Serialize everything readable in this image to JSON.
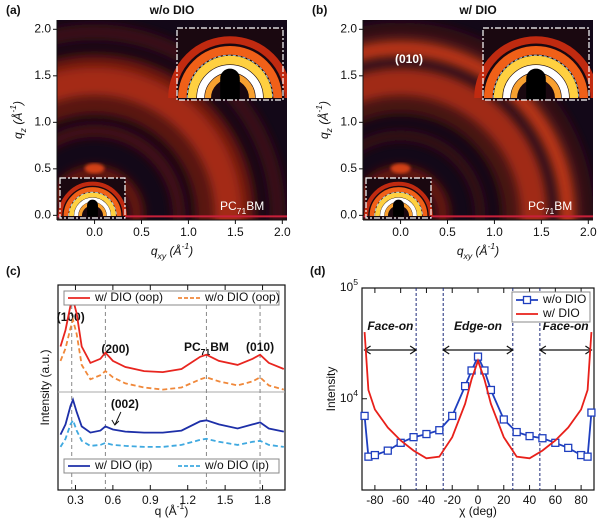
{
  "chart_data": [
    {
      "type": "image",
      "panel": "(a)",
      "title": "w/o DIO",
      "xlabel": "q_{xy} (Å^{-1})",
      "ylabel": "q_{z} (Å^{-1})",
      "xlim": [
        -0.4,
        2.05
      ],
      "ylim": [
        -0.05,
        2.1
      ],
      "xticks": [
        {
          "value": 0,
          "label": "0.0"
        },
        0.5,
        {
          "value": 1,
          "label": "1.0"
        },
        1.5,
        {
          "value": 2,
          "label": "2.0"
        }
      ],
      "yticks": [
        {
          "value": 0,
          "label": "0.0"
        },
        0.5,
        {
          "value": 1,
          "label": "1.0"
        },
        1.5,
        {
          "value": 2,
          "label": "2.0"
        }
      ],
      "annotations": [
        "PC_{71}BM"
      ]
    },
    {
      "type": "image",
      "panel": "(b)",
      "title": "w/ DIO",
      "xlabel": "q_{xy} (Å^{-1})",
      "ylabel": "q_{z} (Å^{-1})",
      "xlim": [
        -0.4,
        2.05
      ],
      "ylim": [
        -0.05,
        2.1
      ],
      "xticks": [
        {
          "value": 0,
          "label": "0.0"
        },
        0.5,
        {
          "value": 1,
          "label": "1.0"
        },
        1.5,
        {
          "value": 2,
          "label": "2.0"
        }
      ],
      "yticks": [
        {
          "value": 0,
          "label": "0.0"
        },
        0.5,
        {
          "value": 1,
          "label": "1.0"
        },
        1.5,
        {
          "value": 2,
          "label": "2.0"
        }
      ],
      "annotations": [
        "(010)",
        "PC_{71}BM"
      ]
    },
    {
      "type": "line",
      "panel": "(c)",
      "xlabel": "q (Å^{-1})",
      "ylabel": "Intensity (a.u.)",
      "xlim": [
        0.16,
        1.98
      ],
      "ylim": [
        0,
        10
      ],
      "xticks": [
        0.3,
        0.6,
        0.9,
        1.2,
        1.5,
        1.8
      ],
      "x": [
        0.18,
        0.22,
        0.26,
        0.28,
        0.31,
        0.35,
        0.42,
        0.5,
        0.54,
        0.6,
        0.7,
        0.85,
        1.0,
        1.15,
        1.3,
        1.35,
        1.45,
        1.6,
        1.72,
        1.78,
        1.85,
        1.97
      ],
      "series": [
        {
          "name": "w/ DIO (oop)",
          "color": "#e8251f",
          "dashed": false,
          "legend": "top",
          "values": [
            7.0,
            7.8,
            9.0,
            9.3,
            8.6,
            7.0,
            6.2,
            6.4,
            6.7,
            6.3,
            6.0,
            5.8,
            5.75,
            5.9,
            6.5,
            6.6,
            6.3,
            6.1,
            6.4,
            6.6,
            6.2,
            5.9
          ]
        },
        {
          "name": "w/o DIO (oop)",
          "color": "#f0883a",
          "dashed": true,
          "legend": "top",
          "values": [
            6.3,
            6.9,
            7.9,
            8.3,
            7.6,
            6.1,
            5.4,
            5.6,
            5.8,
            5.5,
            5.2,
            5.0,
            4.9,
            5.0,
            5.4,
            5.5,
            5.3,
            5.1,
            5.3,
            5.5,
            5.1,
            4.9
          ]
        },
        {
          "name": "w/ DIO (ip)",
          "color": "#1d2fa8",
          "dashed": false,
          "legend": "bottom",
          "values": [
            2.7,
            3.2,
            4.1,
            4.4,
            3.8,
            3.1,
            2.8,
            2.9,
            3.1,
            2.95,
            2.85,
            2.8,
            2.8,
            2.9,
            3.35,
            3.4,
            3.2,
            3.0,
            3.2,
            3.3,
            3.0,
            2.85
          ]
        },
        {
          "name": "w/o DIO (ip)",
          "color": "#3fa9e0",
          "dashed": true,
          "legend": "bottom",
          "values": [
            2.1,
            2.5,
            3.2,
            3.4,
            2.9,
            2.4,
            2.15,
            2.2,
            2.3,
            2.2,
            2.15,
            2.1,
            2.1,
            2.2,
            2.45,
            2.5,
            2.35,
            2.2,
            2.35,
            2.4,
            2.2,
            2.1
          ]
        }
      ],
      "peaks": [
        {
          "label": "(100)",
          "q": 0.27,
          "dashed": true
        },
        {
          "label": "(200)",
          "q": 0.54,
          "dashed": true
        },
        {
          "label": "(002)",
          "q": 0.6,
          "dashed": false
        },
        {
          "label": "PC_{71}BM",
          "q": 1.35,
          "dashed": true
        },
        {
          "label": "(010)",
          "q": 1.78,
          "dashed": true
        }
      ]
    },
    {
      "type": "line",
      "panel": "(d)",
      "xlabel": "χ (deg)",
      "ylabel": "Intensity",
      "log_y": true,
      "xlim": [
        -90,
        90
      ],
      "ylim": [
        1500,
        100000
      ],
      "xticks": [
        -80,
        -60,
        -40,
        -20,
        0,
        20,
        40,
        60,
        80
      ],
      "yticks": [
        {
          "value": 10000,
          "label": "10^{4}"
        },
        {
          "value": 100000,
          "label": "10^{5}"
        }
      ],
      "x": [
        -88,
        -85,
        -80,
        -70,
        -60,
        -50,
        -40,
        -30,
        -20,
        -10,
        -5,
        0,
        5,
        10,
        20,
        30,
        40,
        50,
        60,
        70,
        80,
        85,
        88
      ],
      "series": [
        {
          "name": "w/o DIO",
          "color": "#1f3fbf",
          "marker": "square",
          "values": [
            7000,
            3000,
            3100,
            3400,
            4000,
            4500,
            4800,
            5200,
            7000,
            13000,
            18000,
            24000,
            18000,
            12000,
            6500,
            5000,
            4600,
            4400,
            4000,
            3600,
            3100,
            3000,
            7500
          ]
        },
        {
          "name": "w/ DIO",
          "color": "#e8201a",
          "values": [
            40000,
            12000,
            8000,
            5500,
            4200,
            3400,
            2900,
            3000,
            4500,
            9000,
            15000,
            22000,
            15000,
            9000,
            4500,
            3000,
            2900,
            3400,
            4200,
            5500,
            8000,
            12000,
            40000
          ]
        }
      ],
      "legend": "upper right",
      "regions": [
        {
          "label": "Face-on",
          "range": [
            -88,
            -48
          ]
        },
        {
          "label": "Edge-on",
          "range": [
            -27,
            27
          ]
        },
        {
          "label": "Face-on",
          "range": [
            48,
            88
          ]
        }
      ]
    }
  ]
}
